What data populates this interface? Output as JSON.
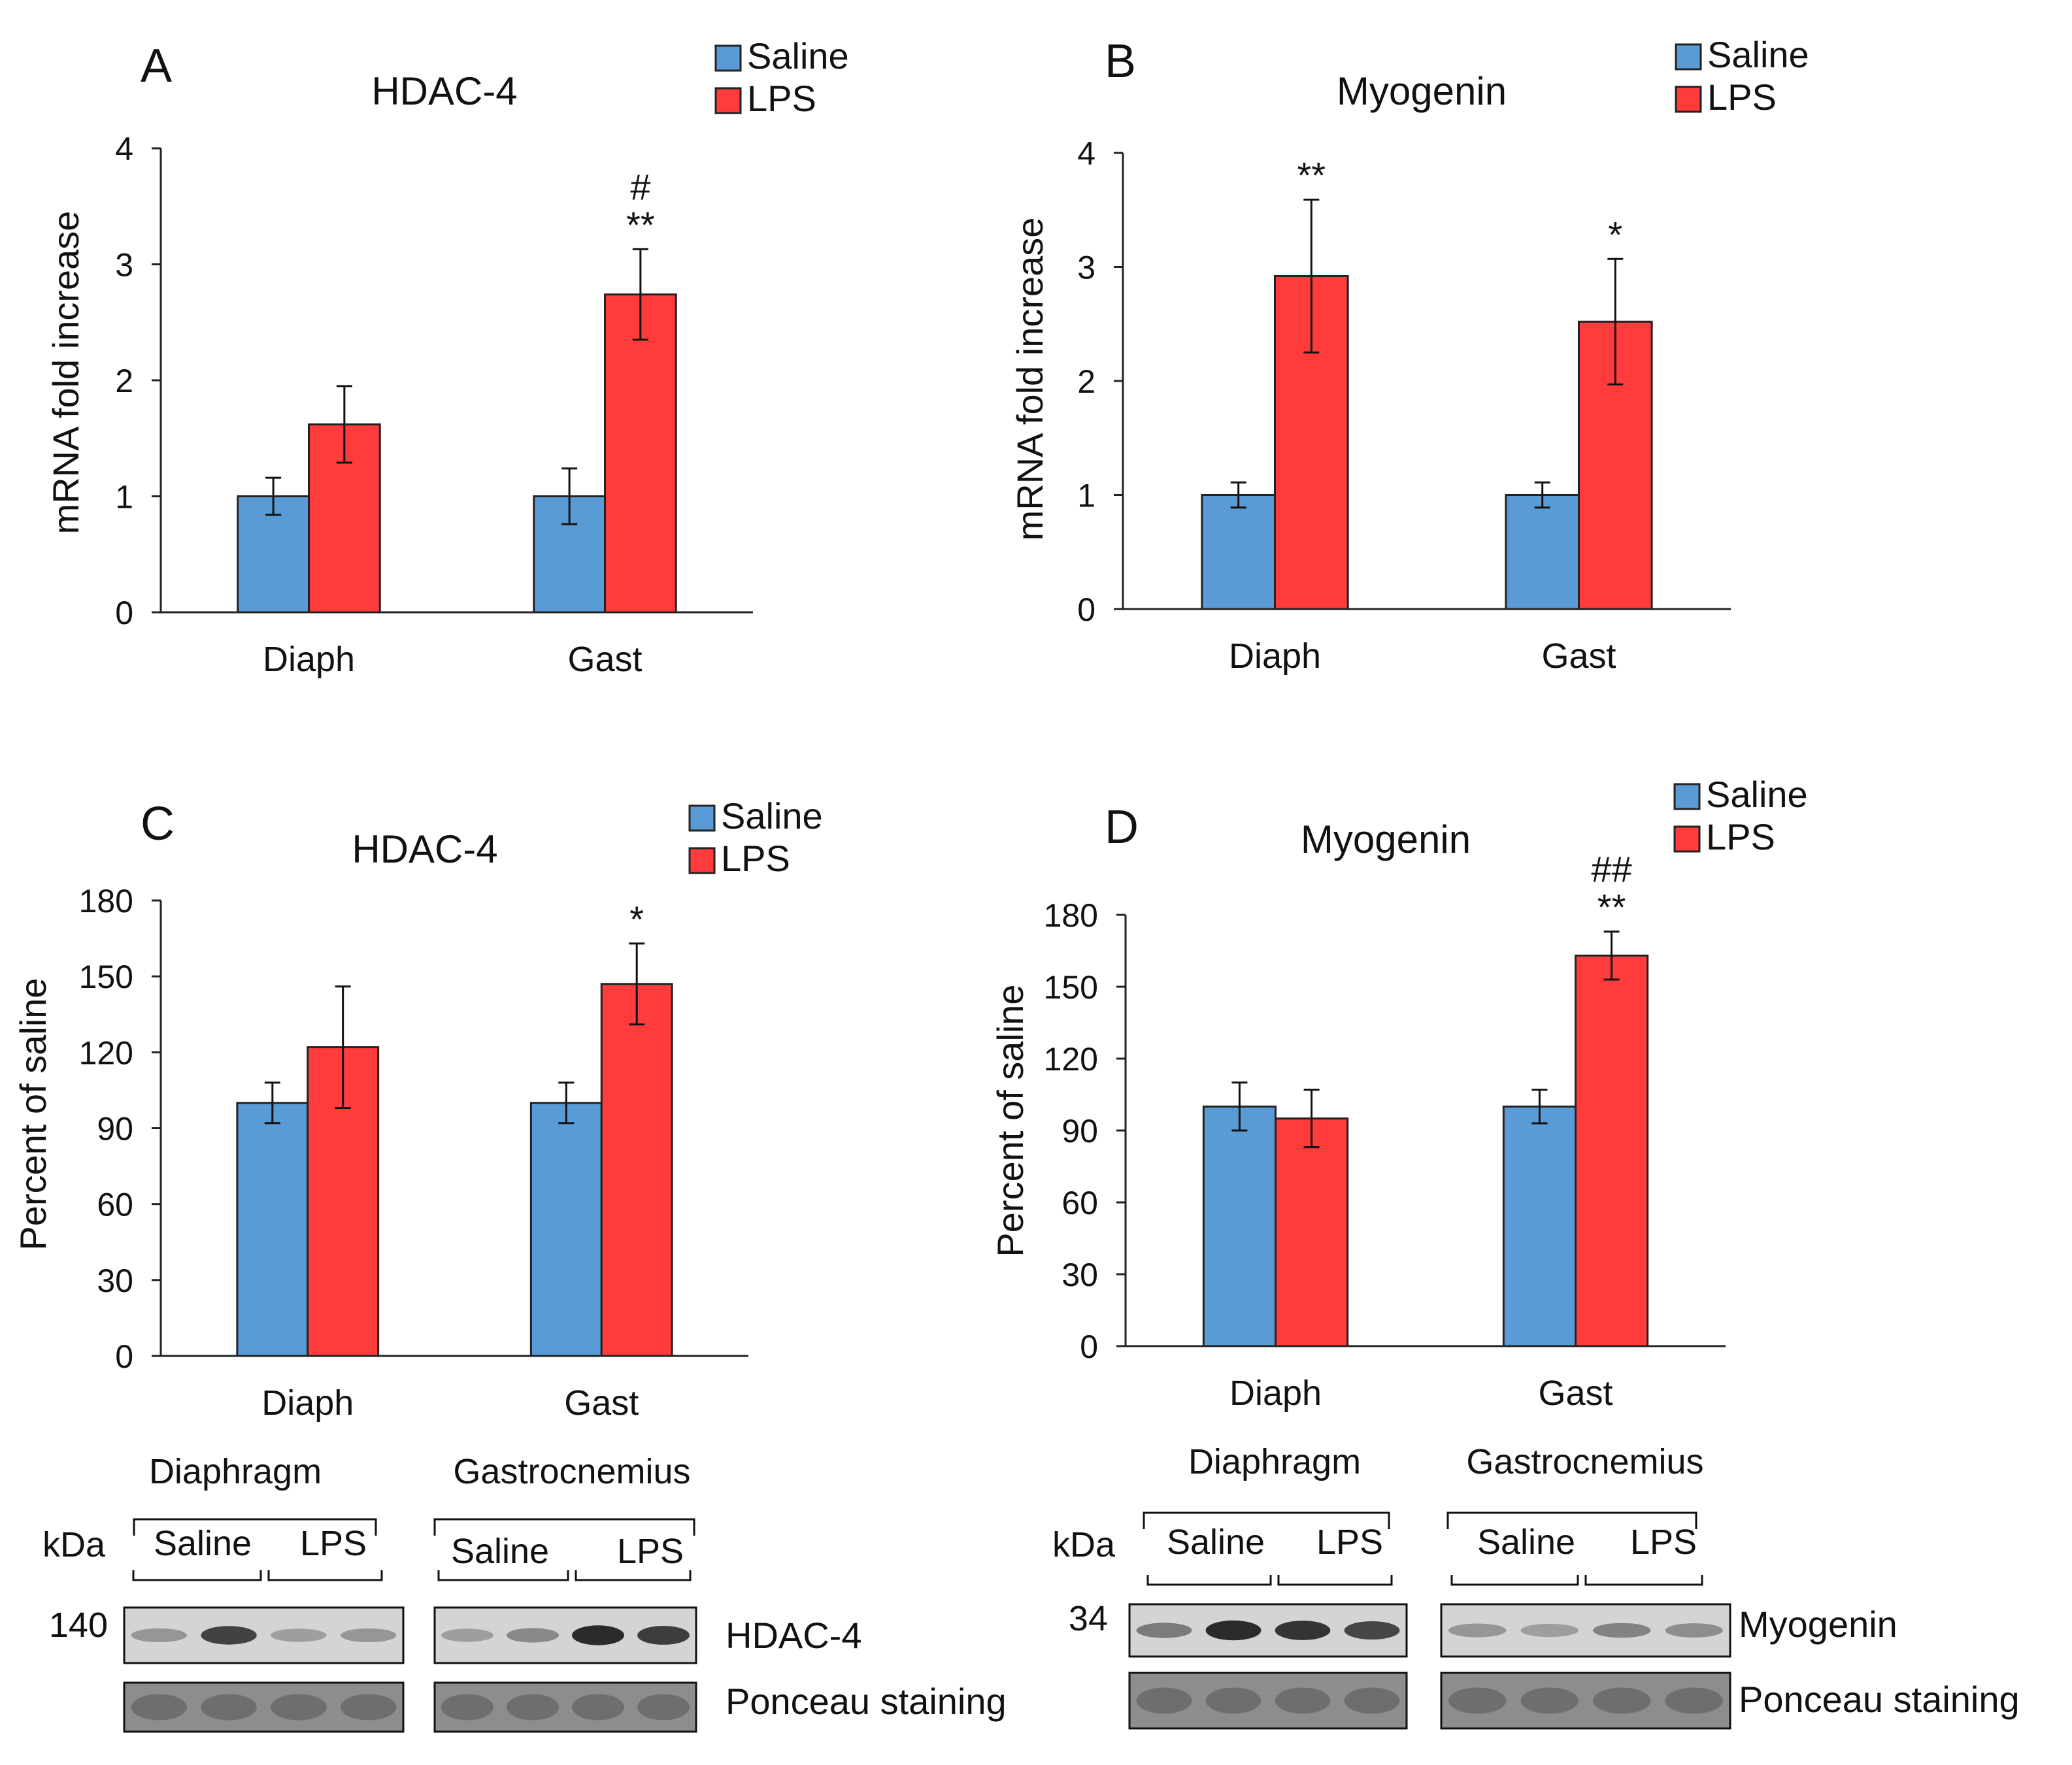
{
  "colors": {
    "saline": "#5b9bd5",
    "lps": "#ff3b3b",
    "axis": "#222222"
  },
  "chart_data": [
    {
      "panel": "A",
      "type": "bar",
      "title": "HDAC-4",
      "xlabel": "",
      "ylabel": "mRNA fold increase",
      "ylim": [
        0,
        4
      ],
      "yticks": [
        0,
        1,
        2,
        3,
        4
      ],
      "categories": [
        "Diaph",
        "Gast"
      ],
      "series": [
        {
          "name": "Saline",
          "color": "#5b9bd5",
          "values": [
            1.0,
            1.0
          ],
          "errors": [
            0.16,
            0.24
          ]
        },
        {
          "name": "LPS",
          "color": "#ff3b3b",
          "values": [
            1.62,
            2.74
          ],
          "errors": [
            0.33,
            0.39
          ],
          "annotations": [
            "",
            "#\n**"
          ]
        }
      ],
      "legend": "top-right",
      "grid": false
    },
    {
      "panel": "B",
      "type": "bar",
      "title": "Myogenin",
      "xlabel": "",
      "ylabel": "mRNA fold increase",
      "ylim": [
        0,
        4
      ],
      "yticks": [
        0,
        1,
        2,
        3,
        4
      ],
      "categories": [
        "Diaph",
        "Gast"
      ],
      "series": [
        {
          "name": "Saline",
          "color": "#5b9bd5",
          "values": [
            1.0,
            1.0
          ],
          "errors": [
            0.11,
            0.11
          ]
        },
        {
          "name": "LPS",
          "color": "#ff3b3b",
          "values": [
            2.92,
            2.52
          ],
          "errors": [
            0.67,
            0.55
          ],
          "annotations": [
            "**",
            "*"
          ]
        }
      ],
      "legend": "top-right",
      "grid": false
    },
    {
      "panel": "C",
      "type": "bar",
      "title": "HDAC-4",
      "xlabel": "",
      "ylabel": "Percent of saline",
      "ylim": [
        0,
        180
      ],
      "yticks": [
        0,
        30,
        60,
        90,
        120,
        150,
        180
      ],
      "categories": [
        "Diaph",
        "Gast"
      ],
      "series": [
        {
          "name": "Saline",
          "color": "#5b9bd5",
          "values": [
            100,
            100
          ],
          "errors": [
            8,
            8
          ]
        },
        {
          "name": "LPS",
          "color": "#ff3b3b",
          "values": [
            122,
            147
          ],
          "errors": [
            24,
            16
          ],
          "annotations": [
            "",
            "*"
          ]
        }
      ],
      "legend": "top-right",
      "grid": false
    },
    {
      "panel": "D",
      "type": "bar",
      "title": "Myogenin",
      "xlabel": "",
      "ylabel": "Percent of saline",
      "ylim": [
        0,
        180
      ],
      "yticks": [
        0,
        30,
        60,
        90,
        120,
        150,
        180
      ],
      "categories": [
        "Diaph",
        "Gast"
      ],
      "series": [
        {
          "name": "Saline",
          "color": "#5b9bd5",
          "values": [
            100,
            100
          ],
          "errors": [
            10,
            7
          ]
        },
        {
          "name": "LPS",
          "color": "#ff3b3b",
          "values": [
            95,
            163
          ],
          "errors": [
            12,
            10
          ],
          "annotations": [
            "",
            "##\n**"
          ]
        }
      ],
      "legend": "top-right",
      "grid": false
    }
  ],
  "blots": [
    {
      "panel": "C",
      "unit": "kDa",
      "muscles": [
        "Diaphragm",
        "Gastrocnemius"
      ],
      "groups": [
        "Saline",
        "LPS"
      ],
      "marker": "140",
      "protein": "HDAC-4",
      "loading": "Ponceau staining"
    },
    {
      "panel": "D",
      "unit": "kDa",
      "muscles": [
        "Diaphragm",
        "Gastrocnemius"
      ],
      "groups": [
        "Saline",
        "LPS"
      ],
      "marker": "34",
      "protein": "Myogenin",
      "loading": "Ponceau staining"
    }
  ]
}
